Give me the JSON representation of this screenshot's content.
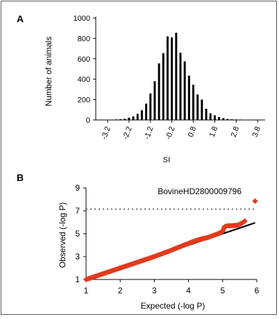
{
  "chart_data": [
    {
      "panel_label": "A",
      "type": "bar",
      "ylabel": "Number of animals",
      "xlabel": "SI",
      "ylim": [
        0,
        1000
      ],
      "y_ticks": [
        0,
        200,
        400,
        600,
        800,
        1000
      ],
      "x_tick_labels": [
        "-3.2",
        "-2.2",
        "-1.2",
        "-0.2",
        "0.8",
        "1.8",
        "2.8",
        "3.8"
      ],
      "x_ticks_at": [
        -3.2,
        -2.2,
        -1.2,
        -0.2,
        0.8,
        1.8,
        2.8,
        3.8
      ],
      "bin_width": 0.2,
      "bins": [
        -3.6,
        -3.4,
        -3.2,
        -3.0,
        -2.8,
        -2.6,
        -2.4,
        -2.2,
        -2.0,
        -1.8,
        -1.6,
        -1.4,
        -1.2,
        -1.0,
        -0.8,
        -0.6,
        -0.4,
        -0.2,
        0.0,
        0.2,
        0.4,
        0.6,
        0.8,
        1.0,
        1.2,
        1.4,
        1.6,
        1.8,
        2.0,
        2.2,
        2.4,
        2.6,
        2.8,
        3.0,
        3.2,
        3.4,
        3.6,
        3.8,
        4.0
      ],
      "values": [
        2,
        2,
        3,
        4,
        6,
        8,
        12,
        22,
        35,
        60,
        95,
        160,
        260,
        380,
        555,
        655,
        820,
        810,
        855,
        660,
        575,
        435,
        345,
        250,
        200,
        110,
        65,
        45,
        28,
        18,
        10,
        7,
        5,
        4,
        3,
        2,
        2,
        2,
        2
      ],
      "x_range": [
        -3.75,
        4.15
      ],
      "bar_color": "#000000"
    },
    {
      "panel_label": "B",
      "type": "scatter",
      "xlabel": "Expected (-log P)",
      "ylabel": "Observed (-log P)",
      "xlim": [
        1,
        6
      ],
      "ylim": [
        1,
        9
      ],
      "x_ticks": [
        1,
        2,
        3,
        4,
        5,
        6
      ],
      "y_ticks": [
        1,
        3,
        5,
        7,
        9
      ],
      "threshold": 7.15,
      "reference_line": {
        "from": [
          1,
          1
        ],
        "to": [
          5.95,
          5.95
        ]
      },
      "annotation": "BovineHD2800009796",
      "marker_color": "#e23a1c",
      "points": [
        [
          1.0,
          1.0
        ],
        [
          1.1,
          1.1
        ],
        [
          1.2,
          1.2
        ],
        [
          1.3,
          1.3
        ],
        [
          1.4,
          1.4
        ],
        [
          1.5,
          1.5
        ],
        [
          1.6,
          1.6
        ],
        [
          1.7,
          1.7
        ],
        [
          1.8,
          1.8
        ],
        [
          1.9,
          1.9
        ],
        [
          2.0,
          2.0
        ],
        [
          2.1,
          2.1
        ],
        [
          2.2,
          2.2
        ],
        [
          2.3,
          2.3
        ],
        [
          2.4,
          2.4
        ],
        [
          2.5,
          2.5
        ],
        [
          2.6,
          2.6
        ],
        [
          2.7,
          2.7
        ],
        [
          2.8,
          2.8
        ],
        [
          2.9,
          2.9
        ],
        [
          3.0,
          3.0
        ],
        [
          3.1,
          3.12
        ],
        [
          3.2,
          3.22
        ],
        [
          3.3,
          3.34
        ],
        [
          3.4,
          3.44
        ],
        [
          3.5,
          3.56
        ],
        [
          3.6,
          3.68
        ],
        [
          3.7,
          3.8
        ],
        [
          3.8,
          3.92
        ],
        [
          3.9,
          4.04
        ],
        [
          4.0,
          4.15
        ],
        [
          4.1,
          4.28
        ],
        [
          4.2,
          4.38
        ],
        [
          4.3,
          4.48
        ],
        [
          4.4,
          4.55
        ],
        [
          4.5,
          4.62
        ],
        [
          4.6,
          4.7
        ],
        [
          4.7,
          4.82
        ],
        [
          4.8,
          4.92
        ],
        [
          4.9,
          5.05
        ],
        [
          5.0,
          5.2
        ],
        [
          5.05,
          5.6
        ],
        [
          5.15,
          5.7
        ],
        [
          5.25,
          5.7
        ],
        [
          5.35,
          5.72
        ],
        [
          5.45,
          5.75
        ],
        [
          5.55,
          5.9
        ],
        [
          5.65,
          6.1
        ],
        [
          5.95,
          7.85
        ]
      ]
    }
  ]
}
